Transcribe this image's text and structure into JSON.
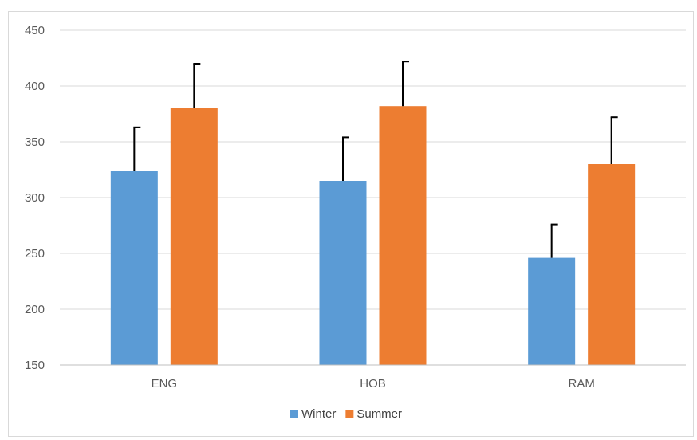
{
  "chart_data": {
    "type": "bar",
    "title": "",
    "xlabel": "",
    "ylabel": "",
    "categories": [
      "ENG",
      "HOB",
      "RAM"
    ],
    "ylim": [
      150,
      450
    ],
    "yticks": [
      150,
      200,
      250,
      300,
      350,
      400,
      450
    ],
    "grid": true,
    "legend_position": "bottom",
    "series": [
      {
        "name": "Winter",
        "color": "#5B9BD5",
        "values": [
          324,
          315,
          246
        ],
        "error": [
          39,
          39,
          30
        ]
      },
      {
        "name": "Summer",
        "color": "#ED7D31",
        "values": [
          380,
          382,
          330
        ],
        "error": [
          40,
          40,
          42
        ]
      }
    ]
  }
}
